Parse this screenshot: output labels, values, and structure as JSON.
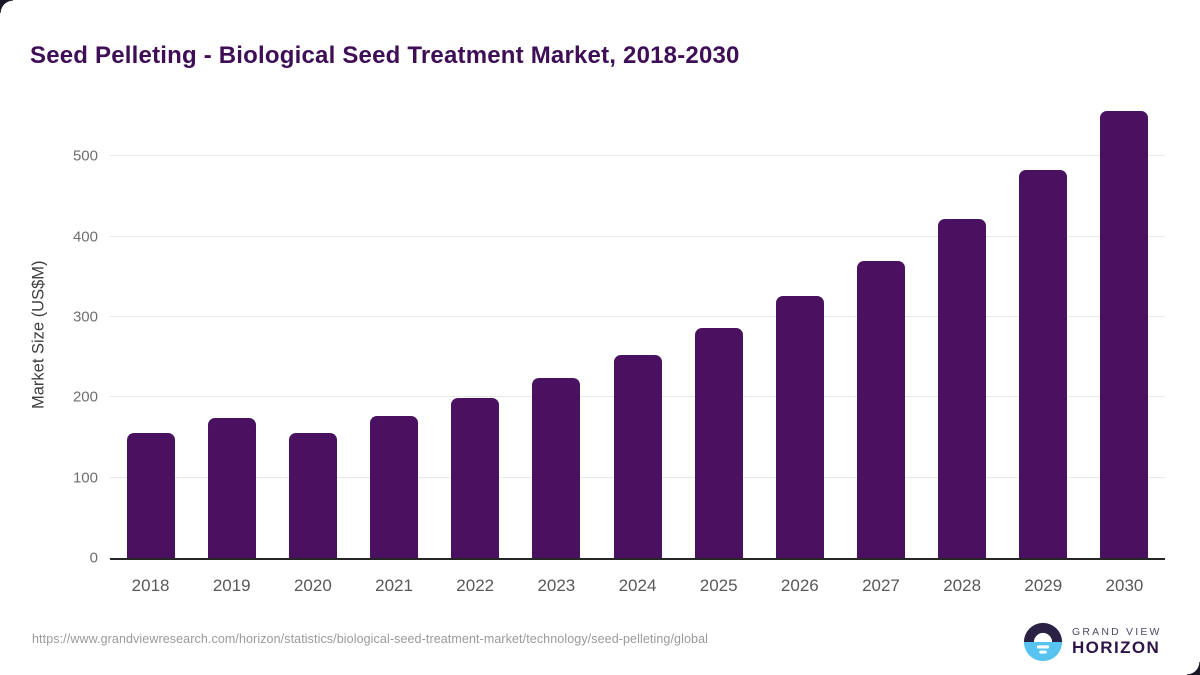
{
  "title": "Seed Pelleting - Biological Seed Treatment Market, 2018-2030",
  "source_url": "https://www.grandviewresearch.com/horizon/statistics/biological-seed-treatment-market/technology/seed-pelleting/global",
  "branding": {
    "name_top": "GRAND VIEW",
    "name_bottom": "HORIZON",
    "logo_icon": "horizon-sunrise-icon",
    "logo_dark": "#2b2144",
    "logo_blue": "#56c3f0"
  },
  "colors": {
    "bar": "#4a1161",
    "title": "#3e0e56",
    "axis_line": "#262626",
    "gridline": "#e9e9e9",
    "tick_label": "#6e6e6e",
    "year_label": "#595959",
    "url_text": "#9a9a9a",
    "corner_mark": "#191725"
  },
  "chart_data": {
    "type": "bar",
    "title": "Seed Pelleting - Biological Seed Treatment Market, 2018-2030",
    "categories": [
      "2018",
      "2019",
      "2020",
      "2021",
      "2022",
      "2023",
      "2024",
      "2025",
      "2026",
      "2027",
      "2028",
      "2029",
      "2030"
    ],
    "values": [
      155,
      174,
      155,
      177,
      199,
      224,
      253,
      286,
      326,
      369,
      422,
      483,
      556
    ],
    "xlabel": "",
    "ylabel": "Market Size (US$M)",
    "ylim": [
      0,
      560
    ],
    "yticks": [
      0,
      100,
      200,
      300,
      400,
      500
    ],
    "grid": true,
    "legend": false,
    "bar_color": "#4a1161"
  }
}
